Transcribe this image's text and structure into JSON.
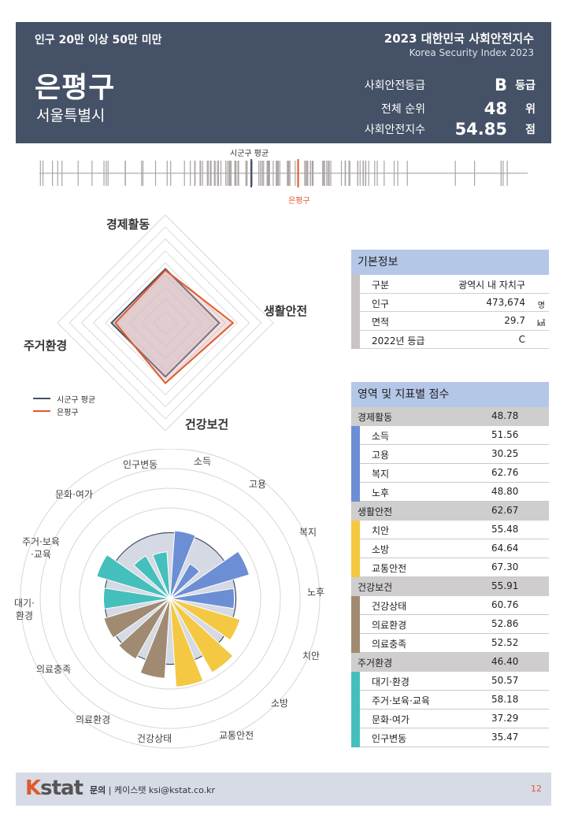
{
  "header": {
    "category": "인구 20만 이상 50만 미만",
    "region": "은평구",
    "parent": "서울특별시",
    "title_ko": "2023 대한민국 사회안전지수",
    "title_en": "Korea Security Index 2023",
    "grade_label": "사회안전등급",
    "grade_value": "B",
    "grade_unit": "등급",
    "rank_label": "전체 순위",
    "rank_value": "48",
    "rank_unit": "위",
    "index_label": "사회안전지수",
    "index_value": "54.85",
    "index_unit": "점"
  },
  "strip": {
    "avg_label": "시군구 평균",
    "region_label": "은평구"
  },
  "radar": {
    "legend_avg": "시군구 평균",
    "legend_region": "은평구",
    "colors": {
      "avg": "#445166",
      "region": "#e05a2b"
    }
  },
  "basic_info": {
    "title": "기본정보",
    "rows": [
      {
        "k": "구분",
        "v": "광역시 내 자치구",
        "u": ""
      },
      {
        "k": "인구",
        "v": "473,674",
        "u": "명"
      },
      {
        "k": "면적",
        "v": "29.7",
        "u": "㎢"
      },
      {
        "k": "2022년 등급",
        "v": "C",
        "u": ""
      }
    ]
  },
  "scores": {
    "title": "영역 및 지표별 점수",
    "domains": [
      {
        "name": "경제활동",
        "score": "48.78",
        "color": "#6c8ed4",
        "indicators": [
          {
            "name": "소득",
            "score": "51.56"
          },
          {
            "name": "고용",
            "score": "30.25"
          },
          {
            "name": "복지",
            "score": "62.76"
          },
          {
            "name": "노후",
            "score": "48.80"
          }
        ]
      },
      {
        "name": "생활안전",
        "score": "62.67",
        "color": "#f4c842",
        "indicators": [
          {
            "name": "치안",
            "score": "55.48"
          },
          {
            "name": "소방",
            "score": "64.64"
          },
          {
            "name": "교통안전",
            "score": "67.30"
          }
        ]
      },
      {
        "name": "건강보건",
        "score": "55.91",
        "color": "#a08b72",
        "indicators": [
          {
            "name": "건강상태",
            "score": "60.76"
          },
          {
            "name": "의료환경",
            "score": "52.86"
          },
          {
            "name": "의료충족",
            "score": "52.52"
          }
        ]
      },
      {
        "name": "주거환경",
        "score": "46.40",
        "color": "#45bfbc",
        "indicators": [
          {
            "name": "대기·환경",
            "score": "50.57"
          },
          {
            "name": "주거·보육·교육",
            "score": "58.18"
          },
          {
            "name": "문화·여가",
            "score": "37.29"
          },
          {
            "name": "인구변동",
            "score": "35.47"
          }
        ]
      }
    ]
  },
  "polar_labels": [
    "소득",
    "고용",
    "복지",
    "노후",
    "치안",
    "소방",
    "교통안전",
    "건강상태",
    "의료환경",
    "의료충족",
    "대기·\n환경",
    "주거·보육\n·교육",
    "문화·여가",
    "인구변동"
  ],
  "footer": {
    "logo_k": "K",
    "logo_rest": "stat",
    "contact_label": "문의",
    "contact_text": "케이스탯 ksi@kstat.co.kr",
    "page": "12"
  },
  "chart_data": [
    {
      "type": "radar",
      "axes": [
        "경제활동",
        "생활안전",
        "건강보건",
        "주거환경"
      ],
      "series": [
        {
          "name": "시군구 평균",
          "values": [
            50,
            50,
            50,
            50
          ]
        },
        {
          "name": "은평구",
          "values": [
            48.78,
            62.67,
            55.91,
            46.4
          ]
        }
      ]
    },
    {
      "type": "bar",
      "subtype": "polar",
      "categories": [
        "소득",
        "고용",
        "복지",
        "노후",
        "치안",
        "소방",
        "교통안전",
        "건강상태",
        "의료환경",
        "의료충족",
        "대기·환경",
        "주거·보육·교육",
        "문화·여가",
        "인구변동"
      ],
      "series": [
        {
          "name": "은평구",
          "values": [
            51.56,
            30.25,
            62.76,
            48.8,
            55.48,
            64.64,
            67.3,
            60.76,
            52.86,
            52.52,
            50.57,
            58.18,
            37.29,
            35.47
          ]
        },
        {
          "name": "시군구 평균",
          "values": [
            50,
            50,
            50,
            50,
            50,
            50,
            50,
            50,
            50,
            50,
            50,
            50,
            50,
            50
          ]
        }
      ]
    },
    {
      "type": "strip",
      "title": "",
      "region_value": 54.85
    }
  ]
}
